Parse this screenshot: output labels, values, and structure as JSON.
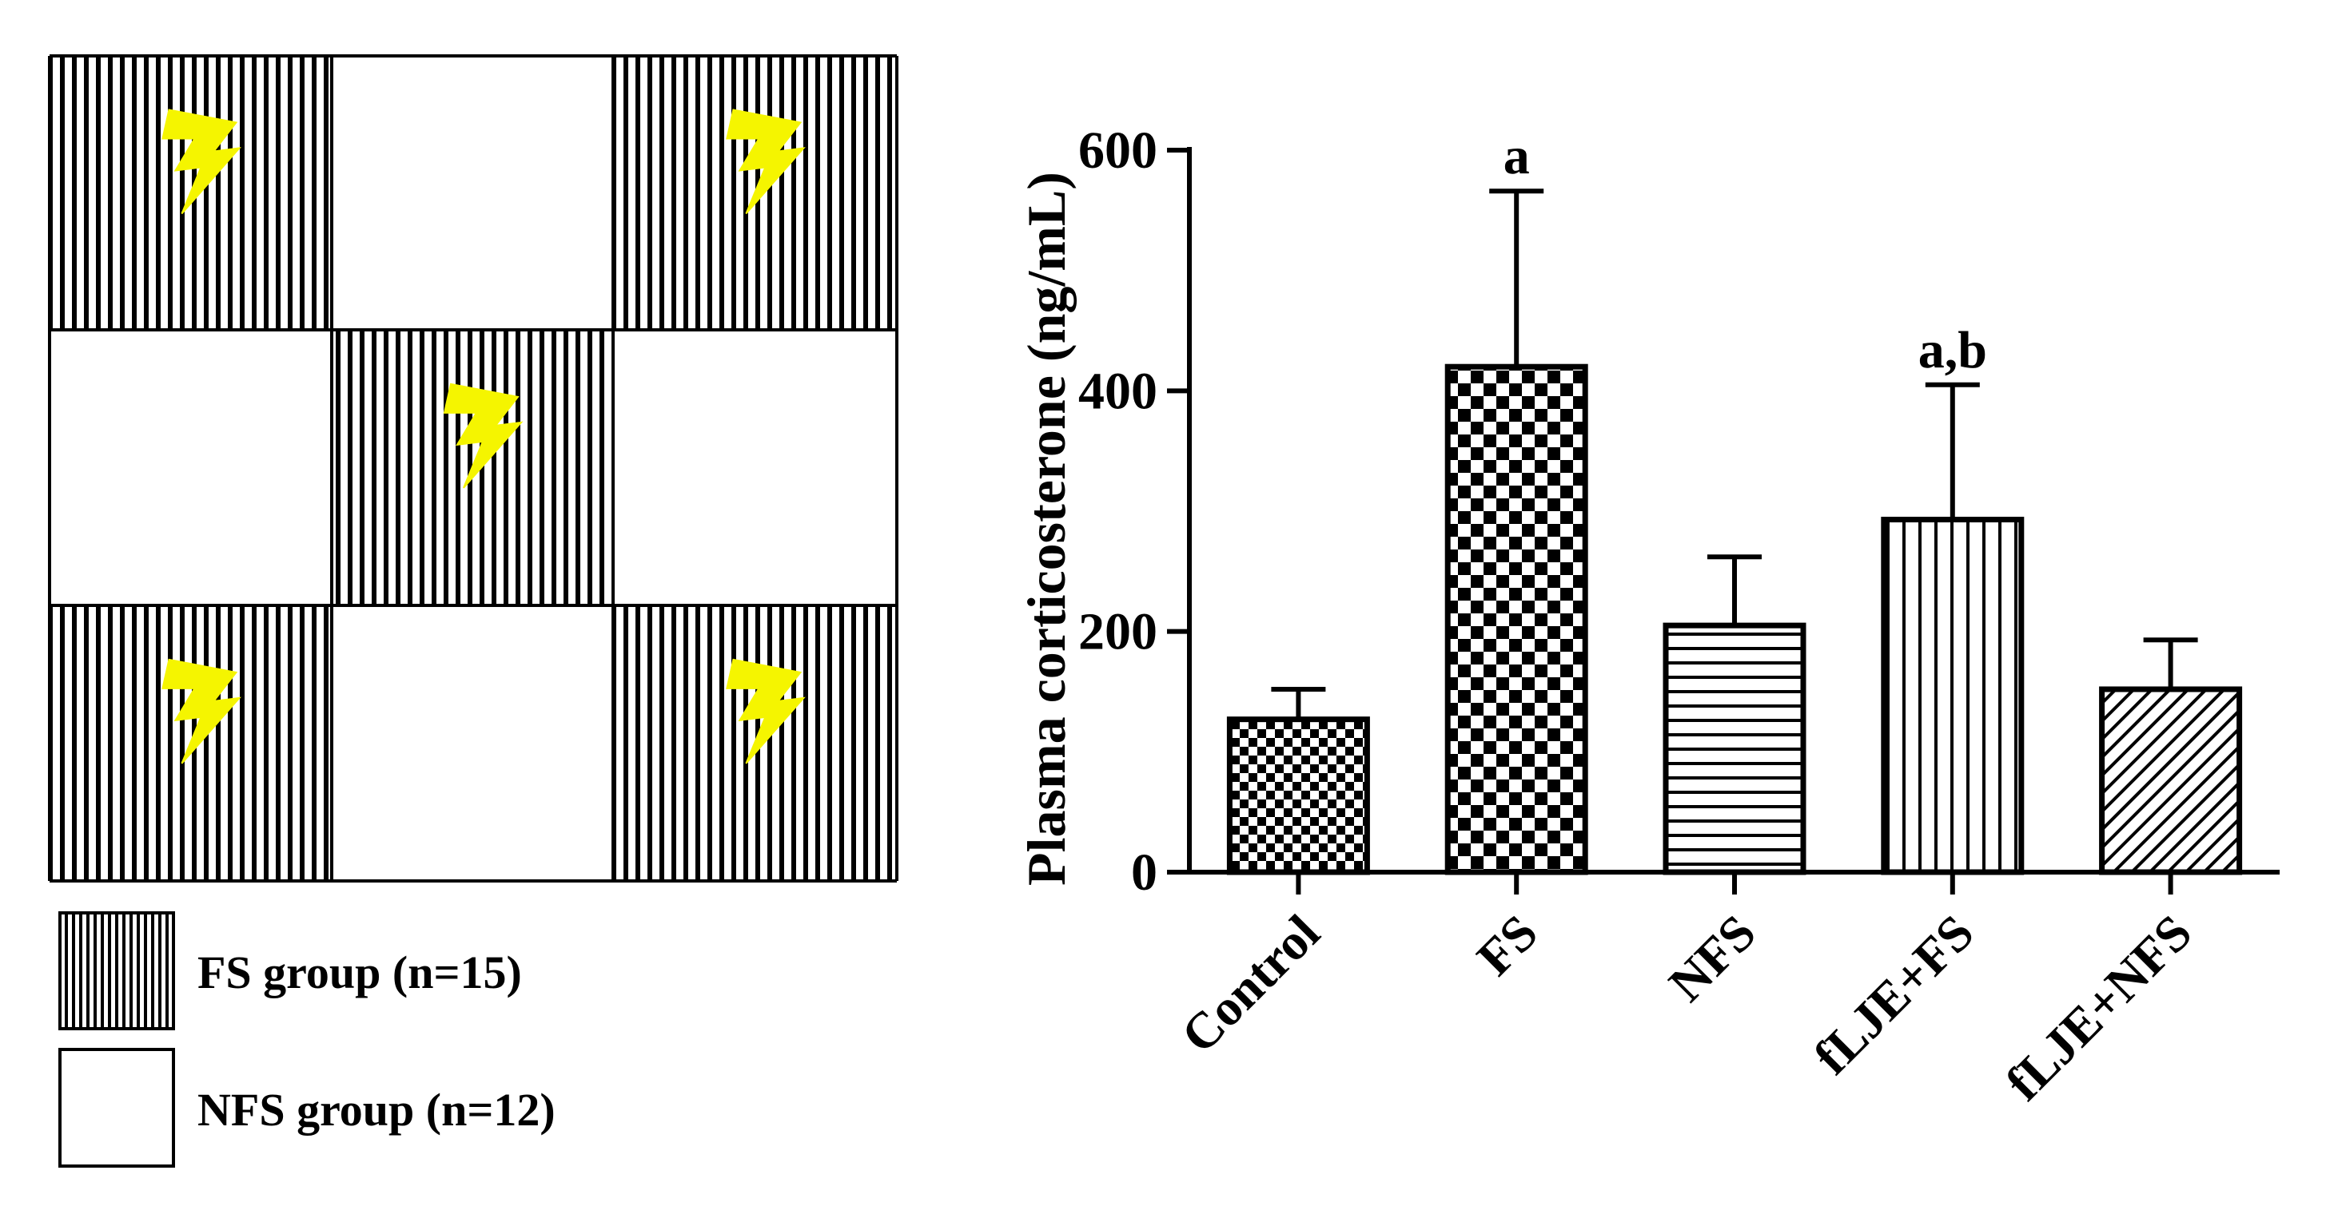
{
  "diagram": {
    "grid_pattern": [
      [
        "FS",
        "NFS",
        "FS"
      ],
      [
        "NFS",
        "FS",
        "NFS"
      ],
      [
        "FS",
        "NFS",
        "FS"
      ]
    ],
    "shock_icon": "lightning-bolt-icon",
    "shock_color": "#f5f500",
    "legend": [
      {
        "key": "FS",
        "label": "FS group (n=15)"
      },
      {
        "key": "NFS",
        "label": "NFS group (n=12)"
      }
    ]
  },
  "chart_data": {
    "type": "bar",
    "title": "",
    "xlabel": "",
    "ylabel": "Plasma corticosterone (ng/mL)",
    "ylim": [
      0,
      600
    ],
    "yticks": [
      0,
      200,
      400,
      600
    ],
    "categories": [
      "Control",
      "FS",
      "NFS",
      "fLJE+FS",
      "fLJE+NFS"
    ],
    "values": [
      127,
      420,
      205,
      293,
      152
    ],
    "errors": [
      25,
      146,
      57,
      112,
      41
    ],
    "annotations": [
      "",
      "a",
      "",
      "a,b",
      ""
    ],
    "patterns": [
      "small-checker",
      "large-checker",
      "horizontal-lines",
      "vertical-lines",
      "diagonal-lines"
    ]
  }
}
